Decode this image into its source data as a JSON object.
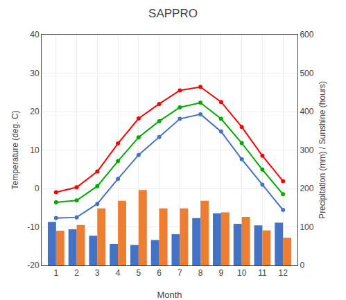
{
  "chart_data": {
    "type": "bar",
    "title": "SAPPRO",
    "x_label": "Month",
    "y_label": "Temperature (deg. C)",
    "y2_label": "Precipitation (mm) / Sunshine (hours)",
    "x": [
      1,
      2,
      3,
      4,
      5,
      6,
      7,
      8,
      9,
      10,
      11,
      12
    ],
    "xlim": [
      0.3,
      12.7
    ],
    "xticks": [
      1,
      2,
      3,
      4,
      5,
      6,
      7,
      8,
      9,
      10,
      11,
      12
    ],
    "ylim": [
      -20,
      40
    ],
    "yticks": [
      -20,
      -10,
      0,
      10,
      20,
      30,
      40
    ],
    "y2lim": [
      0,
      600
    ],
    "y2ticks": [
      0,
      100,
      200,
      300,
      400,
      500,
      600
    ],
    "grid": true,
    "series": [
      {
        "type": "bar",
        "axis": "y2",
        "color": "#4472C4",
        "values": [
          113,
          94,
          77,
          56,
          53,
          66,
          81,
          123,
          135,
          108,
          104,
          111
        ]
      },
      {
        "type": "bar",
        "axis": "y2",
        "color": "#ED7D31",
        "values": [
          90,
          105,
          148,
          168,
          196,
          148,
          148,
          168,
          138,
          126,
          91,
          72
        ]
      },
      {
        "type": "line",
        "marker": "circle",
        "color": "#FF0000",
        "values": [
          -1.0,
          0.3,
          4.4,
          11.7,
          18.2,
          22.0,
          25.5,
          26.4,
          22.5,
          16.0,
          8.5,
          1.9
        ]
      },
      {
        "type": "line",
        "marker": "circle",
        "color": "#00AA00",
        "values": [
          -3.6,
          -3.1,
          0.6,
          7.1,
          13.3,
          17.5,
          21.1,
          22.3,
          18.1,
          11.8,
          4.9,
          -1.5
        ]
      },
      {
        "type": "line",
        "marker": "circle",
        "color": "#4472C4",
        "values": [
          -7.7,
          -7.5,
          -4.0,
          2.5,
          8.7,
          13.4,
          18.1,
          19.3,
          14.8,
          7.6,
          1.0,
          -5.6
        ]
      }
    ]
  }
}
